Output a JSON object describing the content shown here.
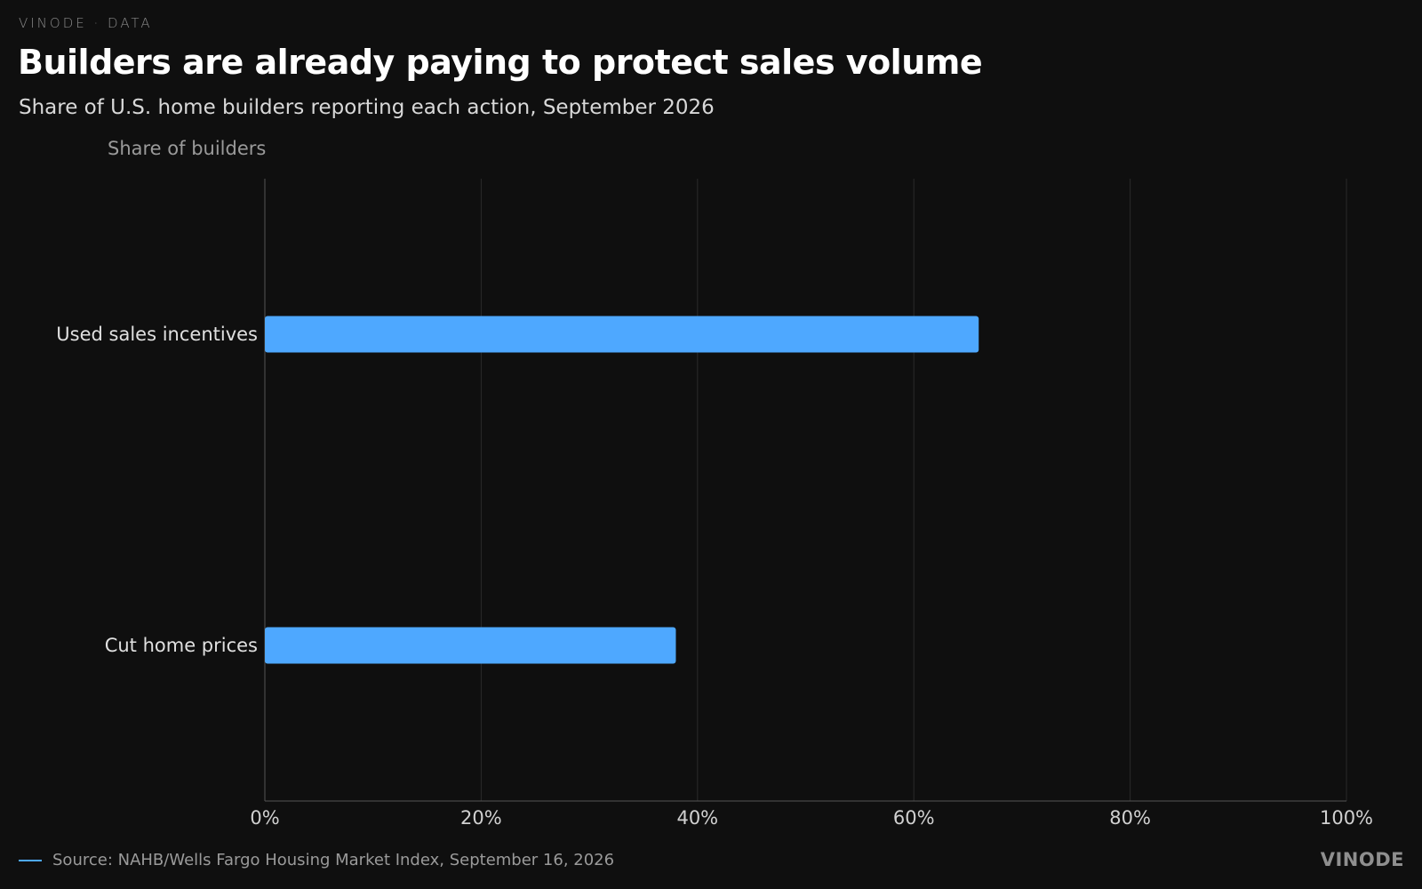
{
  "header": {
    "kicker": "VINODE · DATA",
    "title": "Builders are already paying to protect sales volume",
    "subtitle": "Share of U.S. home builders reporting each action, September 2026"
  },
  "footer": {
    "source": "Source: NAHB/Wells Fargo Housing Market Index, September 16, 2026",
    "brand": "VINODE"
  },
  "colors": {
    "bar": "#4ea8ff",
    "grid": "#2a2a2a",
    "axis": "#555555",
    "background": "#0f0f0f"
  },
  "chart_data": {
    "type": "bar",
    "orientation": "horizontal",
    "title": "Builders are already paying to protect sales volume",
    "subtitle": "Share of U.S. home builders reporting each action, September 2026",
    "xlabel": "",
    "ylabel": "Share of builders",
    "categories": [
      "Used sales incentives",
      "Cut home prices"
    ],
    "values": [
      66,
      38
    ],
    "unit": "%",
    "xlim": [
      0,
      100
    ],
    "ticks": [
      0,
      20,
      40,
      60,
      80,
      100
    ],
    "tick_labels": [
      "0%",
      "20%",
      "40%",
      "60%",
      "80%",
      "100%"
    ],
    "grid": true,
    "legend": "none"
  }
}
